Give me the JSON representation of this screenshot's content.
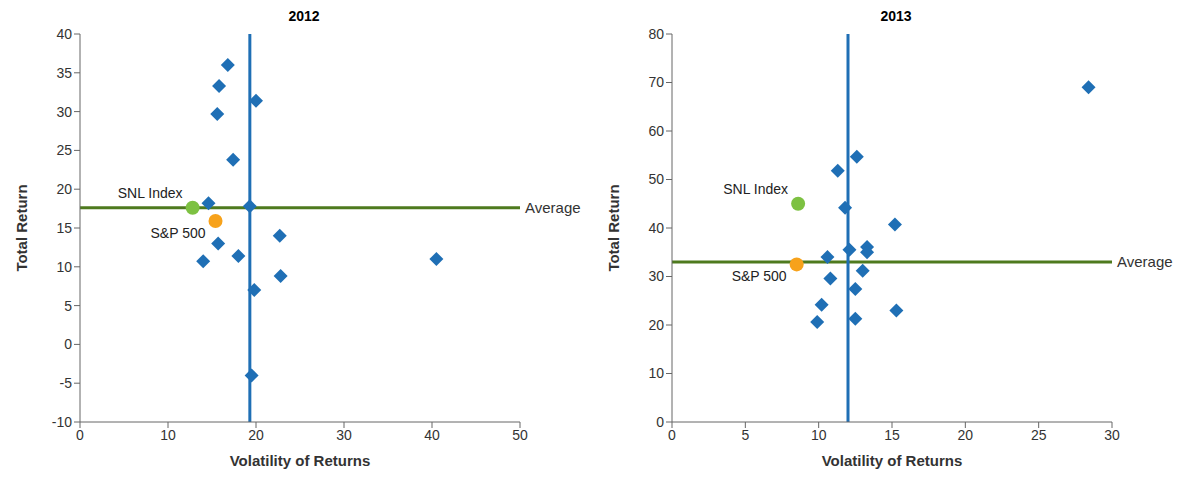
{
  "chart_data": [
    {
      "type": "scatter",
      "title": "2012",
      "x_label": "Volatility of Returns",
      "y_label": "Total Return",
      "xlim": [
        0,
        50
      ],
      "xticks": [
        0,
        10,
        20,
        30,
        40,
        50
      ],
      "ylim": [
        -10,
        40
      ],
      "yticks": [
        -10,
        -5,
        0,
        5,
        10,
        15,
        20,
        25,
        30,
        35,
        40
      ],
      "series": [
        {
          "color": "#1f6fb5",
          "marker": "diamond",
          "x": [
            16.8,
            15.8,
            20,
            15.6,
            17.4,
            14.6,
            19.3,
            15.7,
            22.7,
            14,
            18,
            40.5,
            22.8,
            19.8,
            19.5
          ],
          "y": [
            36,
            33.3,
            31.4,
            29.7,
            23.8,
            18.2,
            17.8,
            13,
            14,
            10.7,
            11.4,
            11,
            8.8,
            7,
            -4
          ]
        },
        {
          "name": "SNL Index",
          "color": "#7dc142",
          "marker": "circle",
          "x": [
            12.8
          ],
          "y": [
            17.6
          ]
        },
        {
          "name": "S&P 500",
          "color": "#f7a21b",
          "marker": "circle",
          "x": [
            15.4
          ],
          "y": [
            15.9
          ]
        }
      ],
      "reference_lines": [
        {
          "label": "Average",
          "y": 17.6,
          "color": "#4e7a1e"
        },
        {
          "x": 19.3,
          "color": "#1f6fb5"
        }
      ]
    },
    {
      "type": "scatter",
      "title": "2013",
      "x_label": "Volatility of Returns",
      "y_label": "Total Return",
      "xlim": [
        0,
        30
      ],
      "xticks": [
        0,
        5,
        10,
        15,
        20,
        25,
        30
      ],
      "ylim": [
        0,
        80
      ],
      "yticks": [
        0,
        10,
        20,
        30,
        40,
        50,
        60,
        70,
        80
      ],
      "series": [
        {
          "color": "#1f6fb5",
          "marker": "diamond",
          "x": [
            28.4,
            12.6,
            11.3,
            11.8,
            15.2,
            13.3,
            13.3,
            12.1,
            10.6,
            13,
            10.8,
            12.5,
            10.2,
            15.3,
            12.5,
            9.9
          ],
          "y": [
            69,
            54.7,
            51.8,
            44.2,
            40.7,
            36.1,
            35,
            35.5,
            34,
            31.2,
            29.6,
            27.4,
            24.2,
            23,
            21.3,
            20.6
          ]
        },
        {
          "name": "SNL Index",
          "color": "#7dc142",
          "marker": "circle",
          "x": [
            8.6
          ],
          "y": [
            45
          ]
        },
        {
          "name": "S&P 500",
          "color": "#f7a21b",
          "marker": "circle",
          "x": [
            8.5
          ],
          "y": [
            32.5
          ]
        }
      ],
      "reference_lines": [
        {
          "label": "Average",
          "y": 33,
          "color": "#4e7a1e"
        },
        {
          "x": 12,
          "color": "#1f6fb5"
        }
      ]
    }
  ]
}
